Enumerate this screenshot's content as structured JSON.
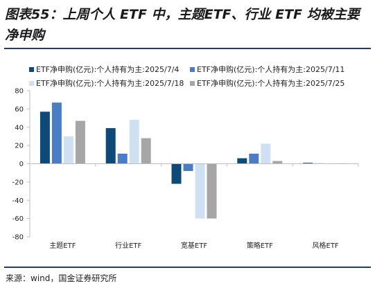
{
  "header": {
    "title": "图表55：上周个人 ETF 中，主题ETF、行业 ETF 均被主要净申购"
  },
  "footer": {
    "source": "来源：wind，国金证券研究所"
  },
  "chart_data": {
    "type": "bar",
    "categories": [
      "主题ETF",
      "行业ETF",
      "宽基ETF",
      "策略ETF",
      "风格ETF"
    ],
    "series": [
      {
        "name": "ETF净申购(亿元):个人持有为主:2025/7/4",
        "color": "#0d4a78",
        "values": [
          57,
          39,
          -22,
          6,
          1
        ]
      },
      {
        "name": "ETF净申购(亿元):个人持有为主:2025/7/11",
        "color": "#4a7dc4",
        "values": [
          67,
          11,
          -8,
          11,
          0.5
        ]
      },
      {
        "name": "ETF净申购(亿元):个人持有为主:2025/7/18",
        "color": "#cfe0f2",
        "values": [
          30,
          48,
          -60,
          22,
          0.3
        ]
      },
      {
        "name": "ETF净申购(亿元):个人持有为主:2025/7/25",
        "color": "#a6a6a6",
        "values": [
          47,
          28,
          -60,
          3,
          0.5
        ]
      }
    ],
    "ylim": [
      -80,
      80
    ],
    "yticks": [
      "80",
      "60",
      "40",
      "20",
      "0",
      "-20",
      "-40",
      "-60",
      "-80"
    ],
    "legend_position": "top",
    "grid": false
  }
}
